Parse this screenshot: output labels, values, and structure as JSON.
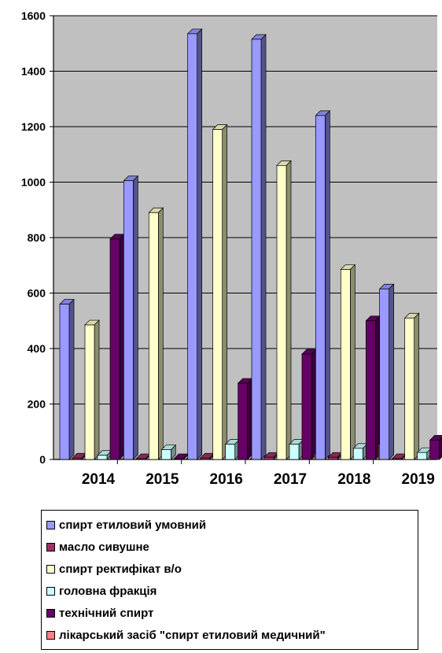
{
  "chart_data": {
    "type": "bar",
    "categories": [
      "2014",
      "2015",
      "2016",
      "2017",
      "2018",
      "2019"
    ],
    "ylim": [
      0,
      1600
    ],
    "yticks": [
      "0",
      "200",
      "400",
      "600",
      "800",
      "1000",
      "1200",
      "1400",
      "1600"
    ],
    "grid": true,
    "legend_position": "bottom",
    "plot_background": "#c0c0c0",
    "series": [
      {
        "name": "спирт етиловий умовний",
        "color": "#9999ff",
        "values": [
          560,
          1005,
          1535,
          1515,
          1240,
          615
        ]
      },
      {
        "name": "масло сивушне",
        "color": "#993366",
        "values": [
          5,
          3,
          5,
          8,
          8,
          3
        ]
      },
      {
        "name": "спирт ректифікат в/о",
        "color": "#ffffcc",
        "values": [
          485,
          890,
          1190,
          1060,
          685,
          510
        ]
      },
      {
        "name": "головна фракція",
        "color": "#ccffff",
        "values": [
          15,
          35,
          55,
          55,
          40,
          25
        ]
      },
      {
        "name": "технічний спирт",
        "color": "#660066",
        "values": [
          795,
          3,
          275,
          380,
          500,
          70
        ]
      },
      {
        "name": "лікарський засіб  \"спирт етиловий медичний\"",
        "color": "#ff8080",
        "values": [
          3,
          3,
          3,
          20,
          55,
          20
        ]
      }
    ]
  }
}
